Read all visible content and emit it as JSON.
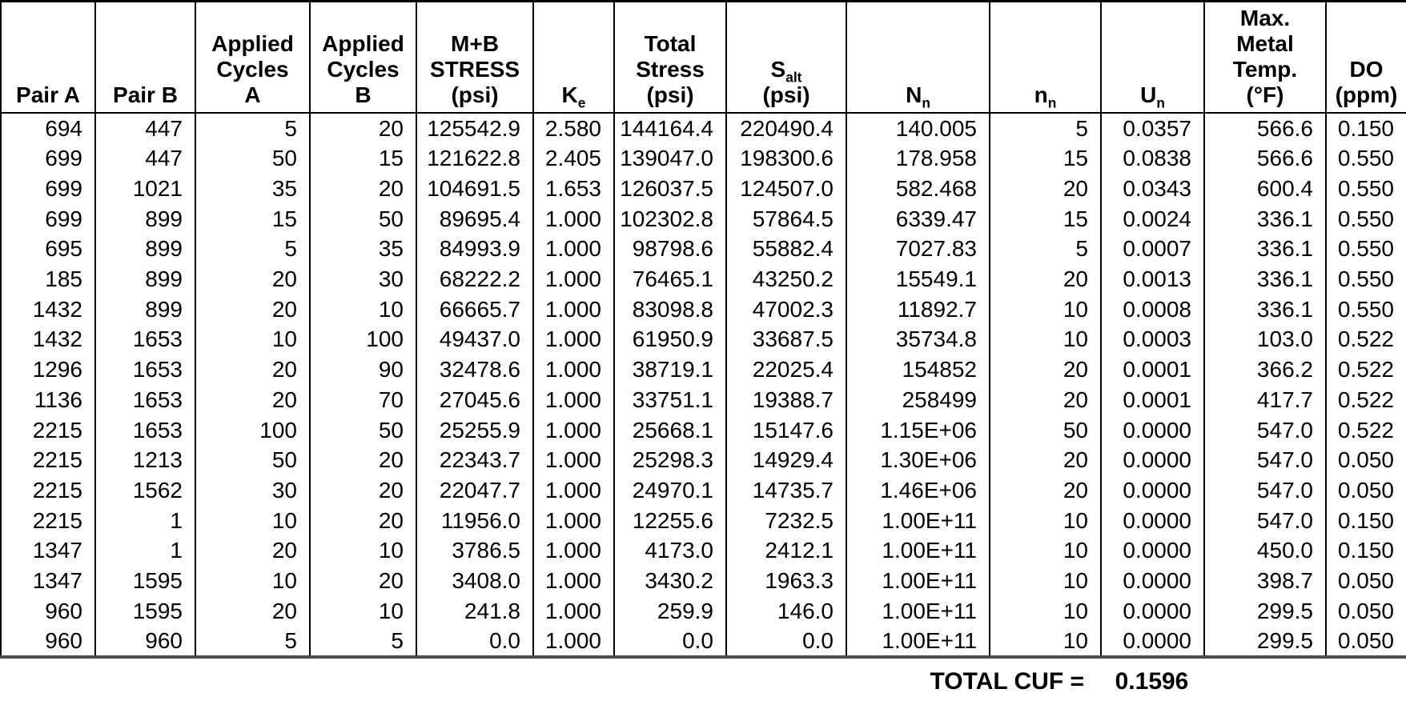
{
  "colors": {
    "background": "#ffffff",
    "text": "#000000",
    "border": "#000000",
    "bottom_rule": "#4d4d4d"
  },
  "table": {
    "headers": [
      {
        "id": "pair-a",
        "lines": [
          "Pair A"
        ]
      },
      {
        "id": "pair-b",
        "lines": [
          "Pair B"
        ]
      },
      {
        "id": "applied-cycles-a",
        "lines": [
          "Applied",
          "Cycles",
          "A"
        ]
      },
      {
        "id": "applied-cycles-b",
        "lines": [
          "Applied",
          "Cycles",
          "B"
        ]
      },
      {
        "id": "mb-stress",
        "lines": [
          "M+B",
          "STRESS",
          "(psi)"
        ]
      },
      {
        "id": "ke",
        "lines": [
          "K_e"
        ]
      },
      {
        "id": "total-stress",
        "lines": [
          "Total",
          "Stress",
          "(psi)"
        ]
      },
      {
        "id": "s-alt",
        "lines": [
          "S_alt",
          "(psi)"
        ]
      },
      {
        "id": "n-allowable",
        "lines": [
          "N_n"
        ]
      },
      {
        "id": "n-applied",
        "lines": [
          "n_n"
        ]
      },
      {
        "id": "u-n",
        "lines": [
          "U_n"
        ]
      },
      {
        "id": "max-metal-temp",
        "lines": [
          "Max.",
          "Metal",
          "Temp.",
          "(°F)"
        ]
      },
      {
        "id": "do",
        "lines": [
          "DO",
          "(ppm)"
        ]
      }
    ],
    "rows": [
      [
        "694",
        "447",
        "5",
        "20",
        "125542.9",
        "2.580",
        "144164.4",
        "220490.4",
        "140.005",
        "5",
        "0.0357",
        "566.6",
        "0.150"
      ],
      [
        "699",
        "447",
        "50",
        "15",
        "121622.8",
        "2.405",
        "139047.0",
        "198300.6",
        "178.958",
        "15",
        "0.0838",
        "566.6",
        "0.550"
      ],
      [
        "699",
        "1021",
        "35",
        "20",
        "104691.5",
        "1.653",
        "126037.5",
        "124507.0",
        "582.468",
        "20",
        "0.0343",
        "600.4",
        "0.550"
      ],
      [
        "699",
        "899",
        "15",
        "50",
        "89695.4",
        "1.000",
        "102302.8",
        "57864.5",
        "6339.47",
        "15",
        "0.0024",
        "336.1",
        "0.550"
      ],
      [
        "695",
        "899",
        "5",
        "35",
        "84993.9",
        "1.000",
        "98798.6",
        "55882.4",
        "7027.83",
        "5",
        "0.0007",
        "336.1",
        "0.550"
      ],
      [
        "185",
        "899",
        "20",
        "30",
        "68222.2",
        "1.000",
        "76465.1",
        "43250.2",
        "15549.1",
        "20",
        "0.0013",
        "336.1",
        "0.550"
      ],
      [
        "1432",
        "899",
        "20",
        "10",
        "66665.7",
        "1.000",
        "83098.8",
        "47002.3",
        "11892.7",
        "10",
        "0.0008",
        "336.1",
        "0.550"
      ],
      [
        "1432",
        "1653",
        "10",
        "100",
        "49437.0",
        "1.000",
        "61950.9",
        "33687.5",
        "35734.8",
        "10",
        "0.0003",
        "103.0",
        "0.522"
      ],
      [
        "1296",
        "1653",
        "20",
        "90",
        "32478.6",
        "1.000",
        "38719.1",
        "22025.4",
        "154852",
        "20",
        "0.0001",
        "366.2",
        "0.522"
      ],
      [
        "1136",
        "1653",
        "20",
        "70",
        "27045.6",
        "1.000",
        "33751.1",
        "19388.7",
        "258499",
        "20",
        "0.0001",
        "417.7",
        "0.522"
      ],
      [
        "2215",
        "1653",
        "100",
        "50",
        "25255.9",
        "1.000",
        "25668.1",
        "15147.6",
        "1.15E+06",
        "50",
        "0.0000",
        "547.0",
        "0.522"
      ],
      [
        "2215",
        "1213",
        "50",
        "20",
        "22343.7",
        "1.000",
        "25298.3",
        "14929.4",
        "1.30E+06",
        "20",
        "0.0000",
        "547.0",
        "0.050"
      ],
      [
        "2215",
        "1562",
        "30",
        "20",
        "22047.7",
        "1.000",
        "24970.1",
        "14735.7",
        "1.46E+06",
        "20",
        "0.0000",
        "547.0",
        "0.050"
      ],
      [
        "2215",
        "1",
        "10",
        "20",
        "11956.0",
        "1.000",
        "12255.6",
        "7232.5",
        "1.00E+11",
        "10",
        "0.0000",
        "547.0",
        "0.150"
      ],
      [
        "1347",
        "1",
        "20",
        "10",
        "3786.5",
        "1.000",
        "4173.0",
        "2412.1",
        "1.00E+11",
        "10",
        "0.0000",
        "450.0",
        "0.150"
      ],
      [
        "1347",
        "1595",
        "10",
        "20",
        "3408.0",
        "1.000",
        "3430.2",
        "1963.3",
        "1.00E+11",
        "10",
        "0.0000",
        "398.7",
        "0.050"
      ],
      [
        "960",
        "1595",
        "20",
        "10",
        "241.8",
        "1.000",
        "259.9",
        "146.0",
        "1.00E+11",
        "10",
        "0.0000",
        "299.5",
        "0.050"
      ],
      [
        "960",
        "960",
        "5",
        "5",
        "0.0",
        "1.000",
        "0.0",
        "0.0",
        "1.00E+11",
        "10",
        "0.0000",
        "299.5",
        "0.050"
      ]
    ],
    "footer": {
      "label": "TOTAL CUF =",
      "value": "0.1596"
    }
  }
}
